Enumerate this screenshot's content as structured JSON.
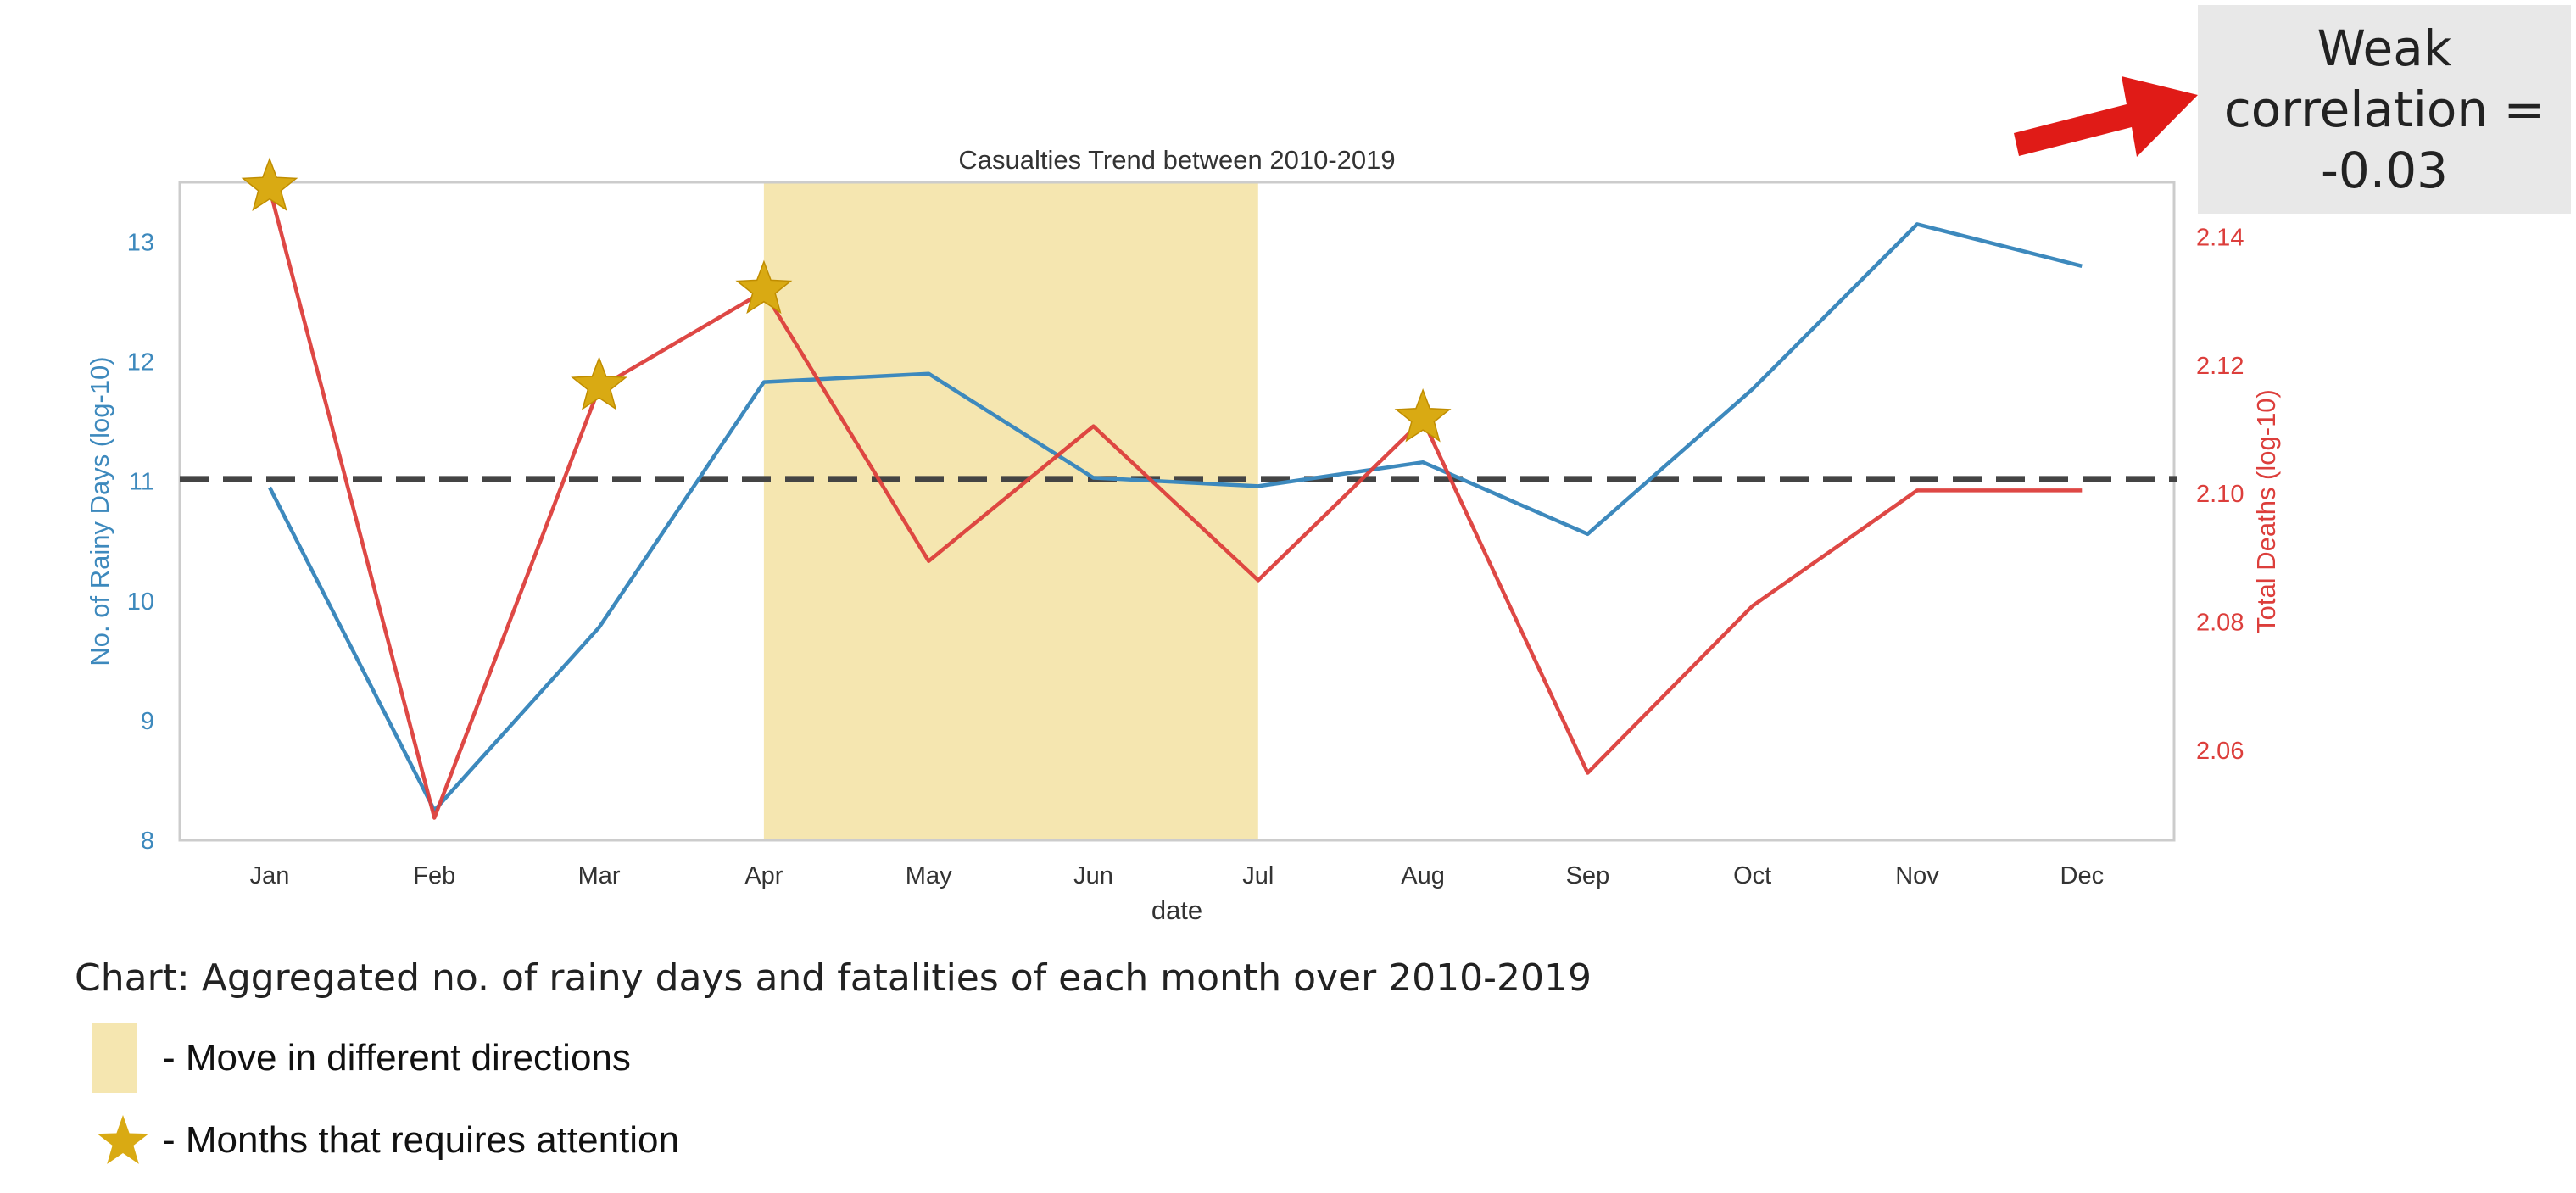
{
  "chart_data": {
    "type": "line",
    "title": "Casualties Trend between 2010-2019",
    "xlabel": "date",
    "categories": [
      "Jan",
      "Feb",
      "Mar",
      "Apr",
      "May",
      "Jun",
      "Jul",
      "Aug",
      "Sep",
      "Oct",
      "Nov",
      "Dec"
    ],
    "left_axis": {
      "label": "No. of Rainy Days (log-10)",
      "range": [
        8,
        13.5
      ],
      "ticks": [
        8,
        9,
        10,
        11,
        12,
        13
      ],
      "color": "#3d89bd"
    },
    "right_axis": {
      "label": "Total Deaths (log-10)",
      "range": [
        2.046,
        2.1485
      ],
      "ticks": [
        "2.06",
        "2.08",
        "2.10",
        "2.12",
        "2.14"
      ],
      "color": "#dc3e3b"
    },
    "series": [
      {
        "axis": "left",
        "color": "#3d89bd",
        "values": [
          10.95,
          8.25,
          9.78,
          11.83,
          11.9,
          11.03,
          10.96,
          11.16,
          10.56,
          11.77,
          13.15,
          12.8
        ]
      },
      {
        "axis": "right",
        "color": "#dc3e3b",
        "values": [
          2.1475,
          2.0495,
          2.1165,
          2.1315,
          2.0895,
          2.1105,
          2.0865,
          2.1115,
          2.0565,
          2.0825,
          2.1005,
          2.1005
        ]
      }
    ],
    "reference_line": {
      "axis": "left",
      "value": 11.02,
      "style": "dashed",
      "color": "#444444"
    },
    "highlight_region": {
      "from": "Apr",
      "to": "Jul",
      "color": "#f5e6b0"
    },
    "star_markers": {
      "months": [
        "Jan",
        "Mar",
        "Apr",
        "Aug"
      ],
      "color": "#d9aa13"
    },
    "grid": false
  },
  "callout": {
    "text": "Weak\ncorrelation =\n-0.03",
    "arrow_color": "#e01b17"
  },
  "caption": "Chart: Aggregated no. of rainy days and fatalities of each month over 2010-2019",
  "legend": {
    "region_label": "- Move in different directions",
    "star_label": "- Months that requires attention"
  }
}
